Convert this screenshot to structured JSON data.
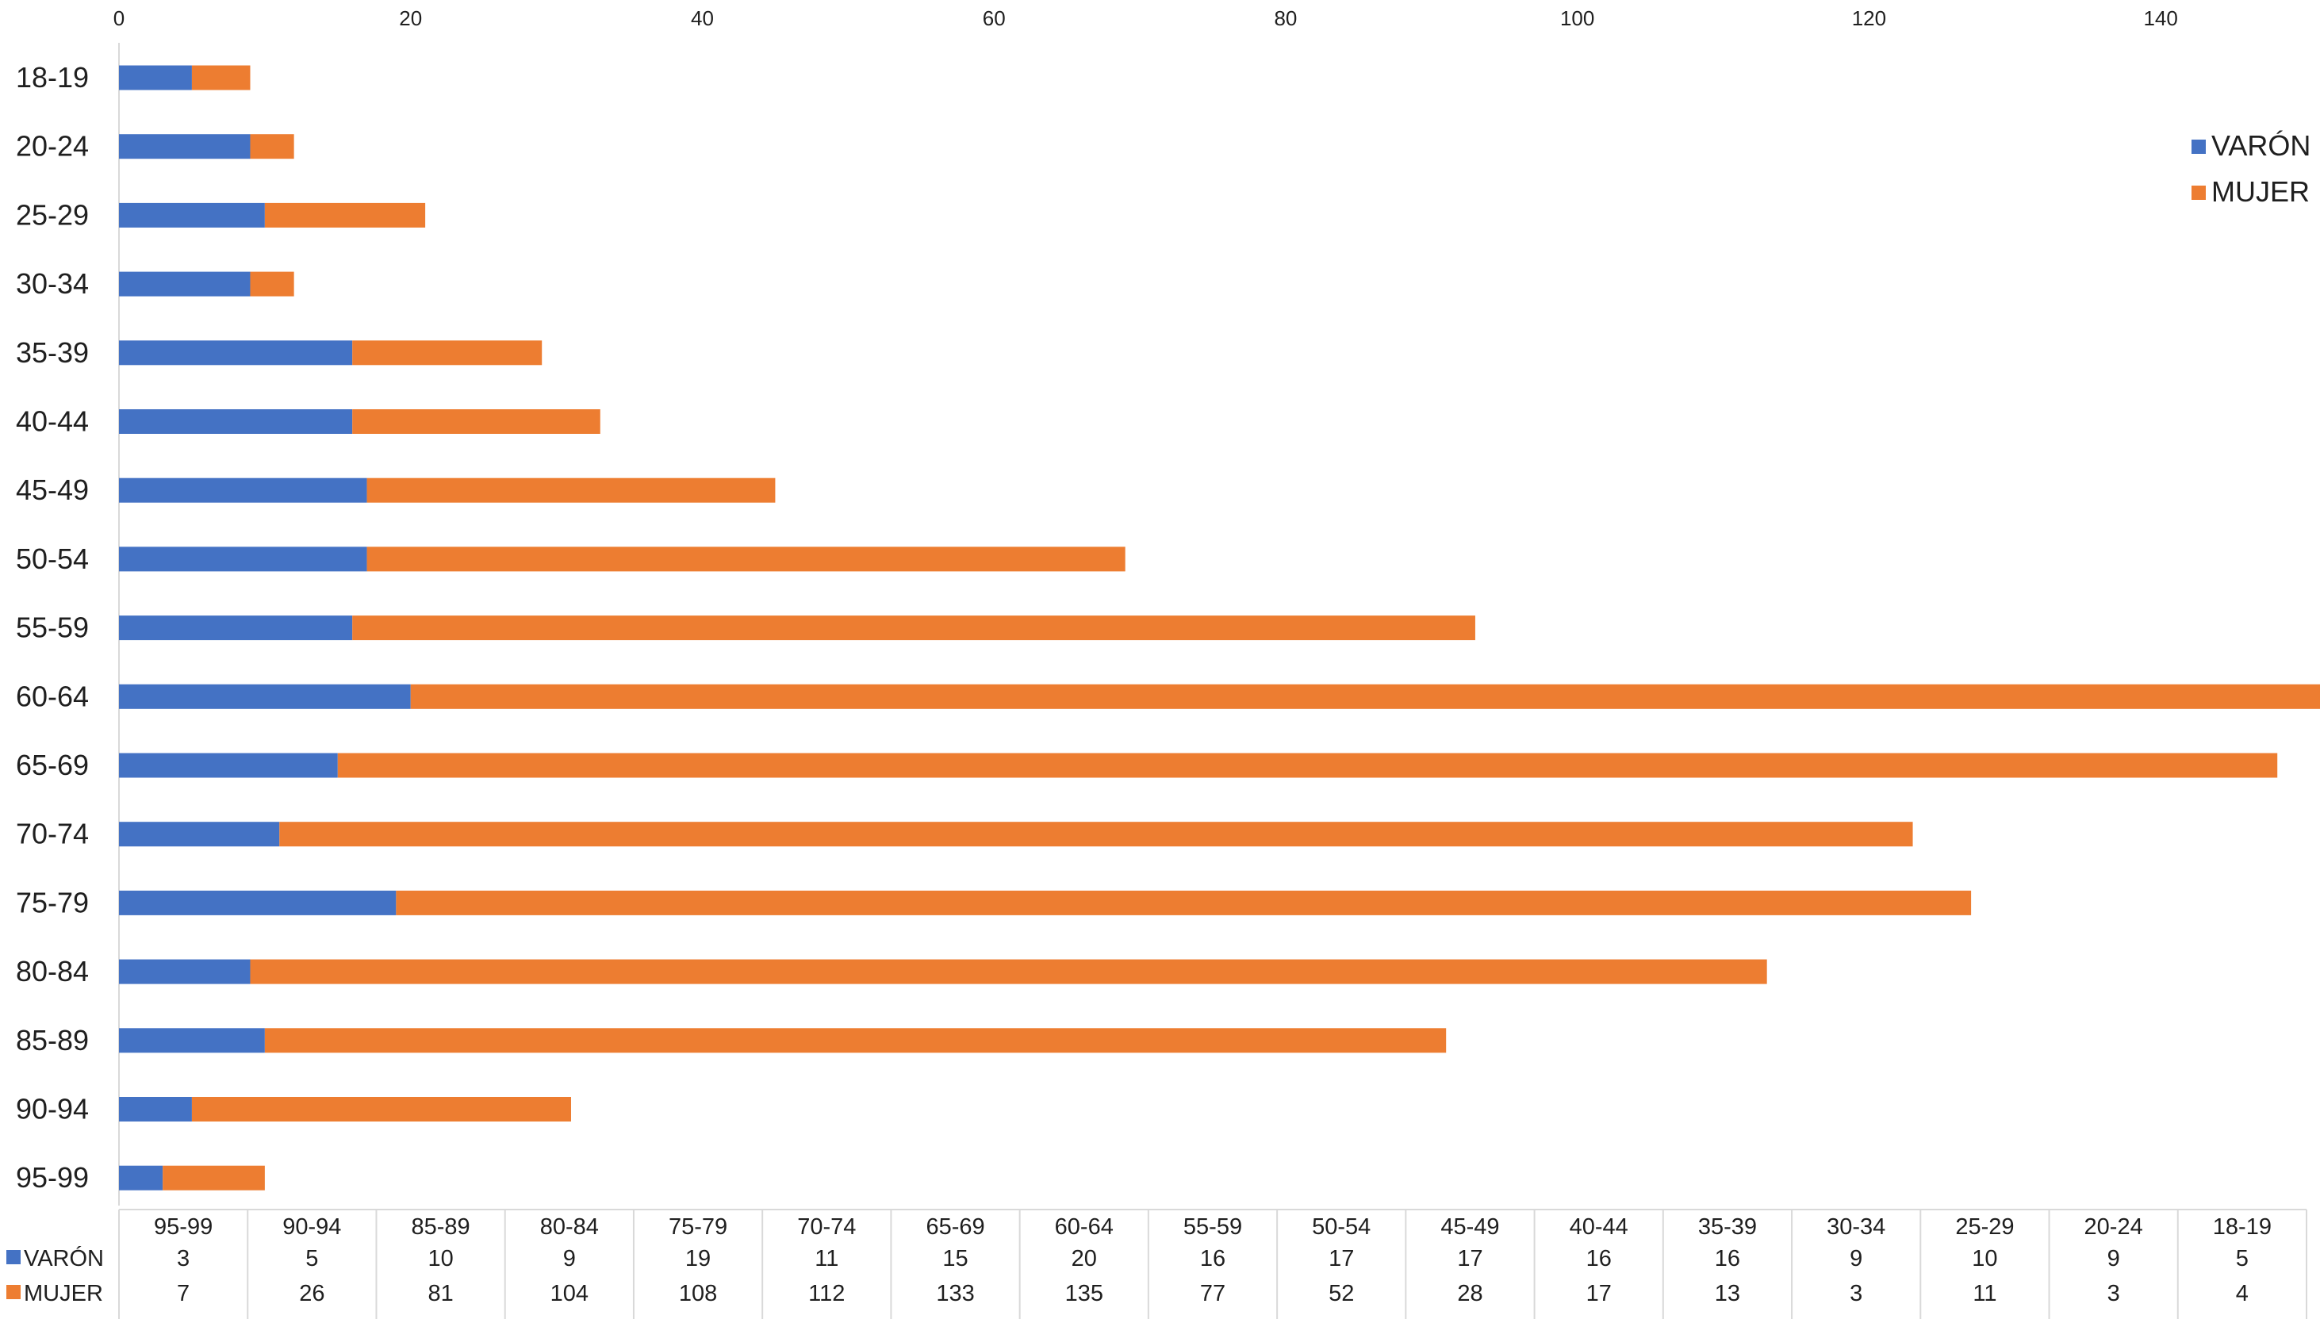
{
  "chart_data": {
    "type": "bar",
    "orientation": "horizontal",
    "stacked": true,
    "categories": [
      "18-19",
      "20-24",
      "25-29",
      "30-34",
      "35-39",
      "40-44",
      "45-49",
      "50-54",
      "55-59",
      "60-64",
      "65-69",
      "70-74",
      "75-79",
      "80-84",
      "85-89",
      "90-94",
      "95-99"
    ],
    "series": [
      {
        "name": "VARÓN",
        "color": "#4472c4",
        "values": [
          5,
          9,
          10,
          9,
          16,
          16,
          17,
          17,
          16,
          20,
          15,
          11,
          19,
          9,
          10,
          5,
          3
        ]
      },
      {
        "name": "MUJER",
        "color": "#ed7d31",
        "values": [
          4,
          3,
          11,
          3,
          13,
          17,
          28,
          52,
          77,
          135,
          133,
          112,
          108,
          104,
          81,
          26,
          7
        ]
      }
    ],
    "x_ticks": [
      "0",
      "20",
      "40",
      "60",
      "80",
      "100",
      "120",
      "140"
    ],
    "xlim": [
      0,
      150
    ],
    "x_axis_position": "top",
    "legend_position": "top-right",
    "title": "",
    "xlabel": "",
    "ylabel": "",
    "grid": false,
    "data_table": {
      "columns": [
        "95-99",
        "90-94",
        "85-89",
        "80-84",
        "75-79",
        "70-74",
        "65-69",
        "60-64",
        "55-59",
        "50-54",
        "45-49",
        "40-44",
        "35-39",
        "30-34",
        "25-29",
        "20-24",
        "18-19"
      ],
      "rows": [
        {
          "name": "VARÓN",
          "color": "#4472c4",
          "values": [
            "3",
            "5",
            "10",
            "9",
            "19",
            "11",
            "15",
            "20",
            "16",
            "17",
            "17",
            "16",
            "16",
            "9",
            "10",
            "9",
            "5"
          ]
        },
        {
          "name": "MUJER",
          "color": "#ed7d31",
          "values": [
            "7",
            "26",
            "81",
            "104",
            "108",
            "112",
            "133",
            "135",
            "77",
            "52",
            "28",
            "17",
            "13",
            "3",
            "11",
            "3",
            "4"
          ]
        }
      ]
    }
  }
}
